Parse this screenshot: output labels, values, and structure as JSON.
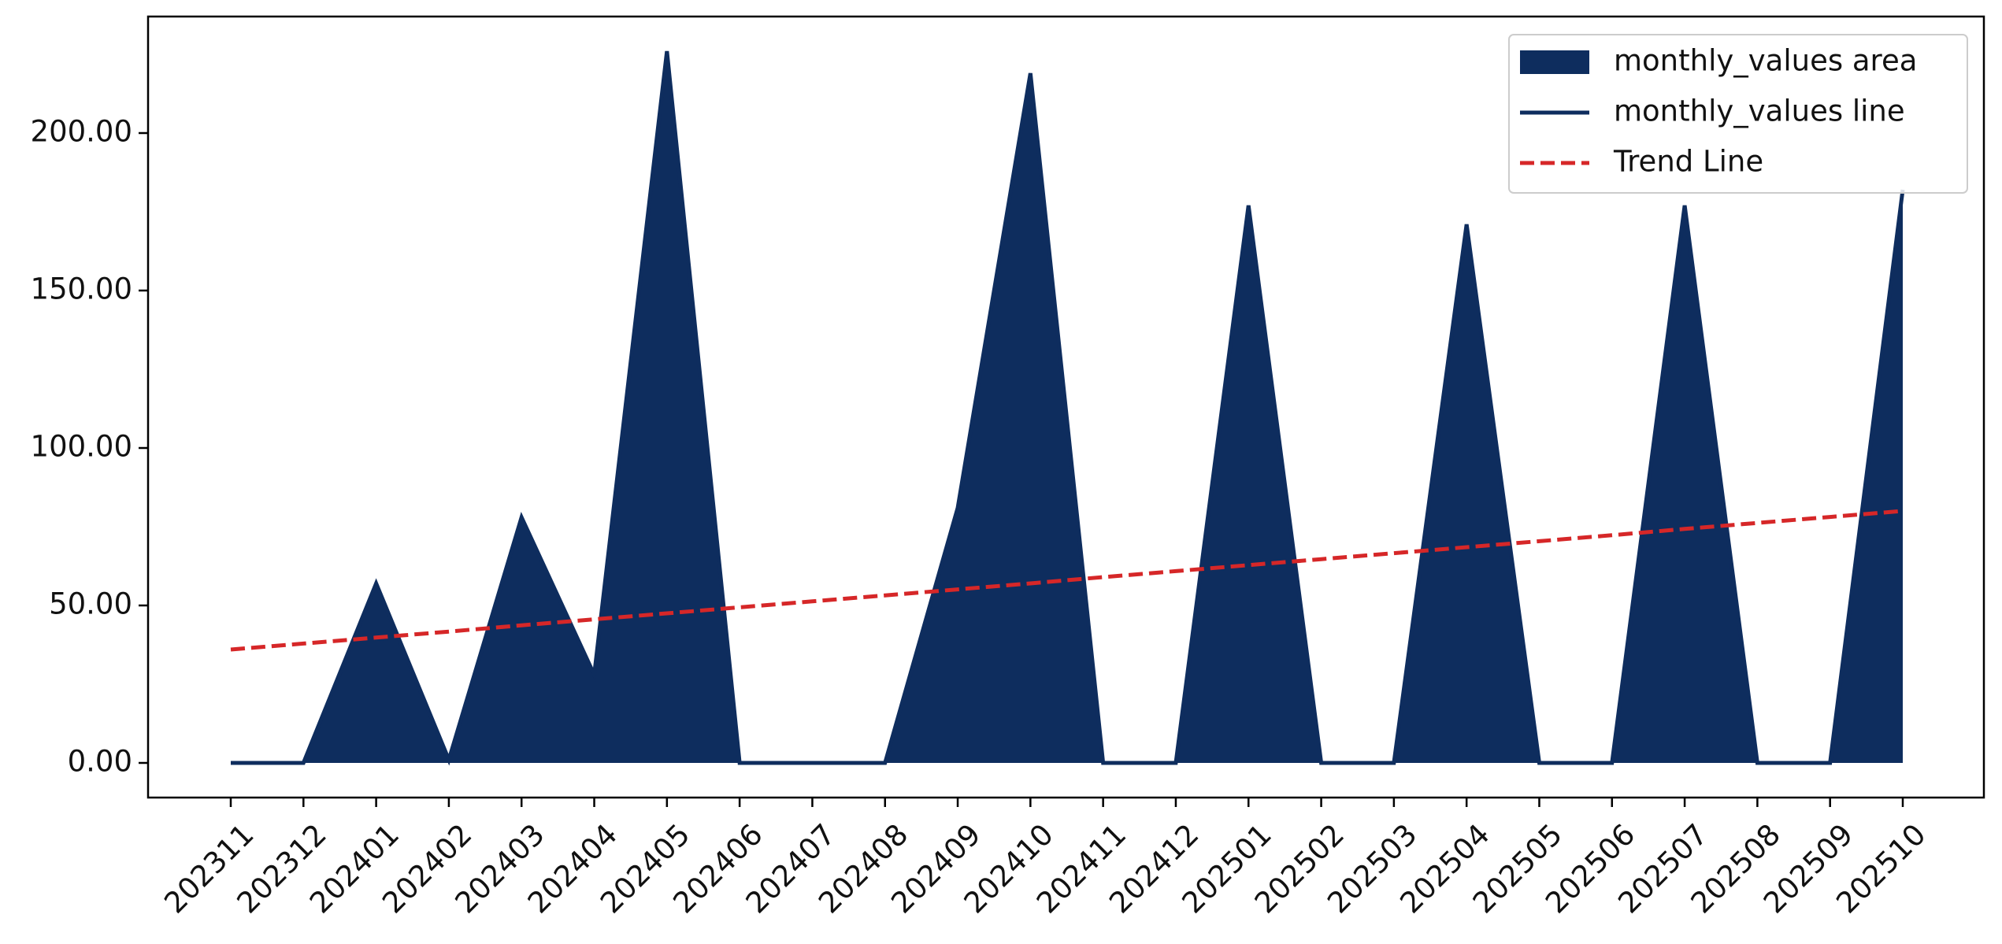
{
  "chart_data": {
    "type": "area",
    "categories": [
      "202311",
      "202312",
      "202401",
      "202402",
      "202403",
      "202404",
      "202405",
      "202406",
      "202407",
      "202408",
      "202409",
      "202410",
      "202411",
      "202412",
      "202501",
      "202502",
      "202503",
      "202504",
      "202505",
      "202506",
      "202507",
      "202508",
      "202509",
      "202510"
    ],
    "series": [
      {
        "name": "monthly_values area",
        "style": "area",
        "color": "#0e2d5e",
        "values": [
          0,
          0,
          57,
          1,
          78,
          28,
          226,
          0,
          0,
          0,
          81,
          219,
          0,
          0,
          177,
          0,
          0,
          171,
          0,
          0,
          177,
          0,
          0,
          182
        ]
      },
      {
        "name": "monthly_values line",
        "style": "line",
        "color": "#0e2d5e",
        "values": [
          0,
          0,
          57,
          1,
          78,
          28,
          226,
          0,
          0,
          0,
          81,
          219,
          0,
          0,
          177,
          0,
          0,
          171,
          0,
          0,
          177,
          0,
          0,
          182
        ]
      },
      {
        "name": "Trend Line",
        "style": "dashed",
        "color": "#d62728",
        "values": [
          36.0,
          37.9,
          39.8,
          41.7,
          43.7,
          45.6,
          47.5,
          49.4,
          51.3,
          53.2,
          55.1,
          57.0,
          59.0,
          60.9,
          62.8,
          64.7,
          66.6,
          68.5,
          70.4,
          72.3,
          74.3,
          76.2,
          78.1,
          80.0
        ]
      }
    ],
    "ylim": [
      -11,
      237
    ],
    "yticks": [
      {
        "value": 0,
        "label": "0.00"
      },
      {
        "value": 50,
        "label": "50.00"
      },
      {
        "value": 100,
        "label": "100.00"
      },
      {
        "value": 150,
        "label": "150.00"
      },
      {
        "value": 200,
        "label": "200.00"
      }
    ],
    "legend": "upper right",
    "grid": false
  }
}
